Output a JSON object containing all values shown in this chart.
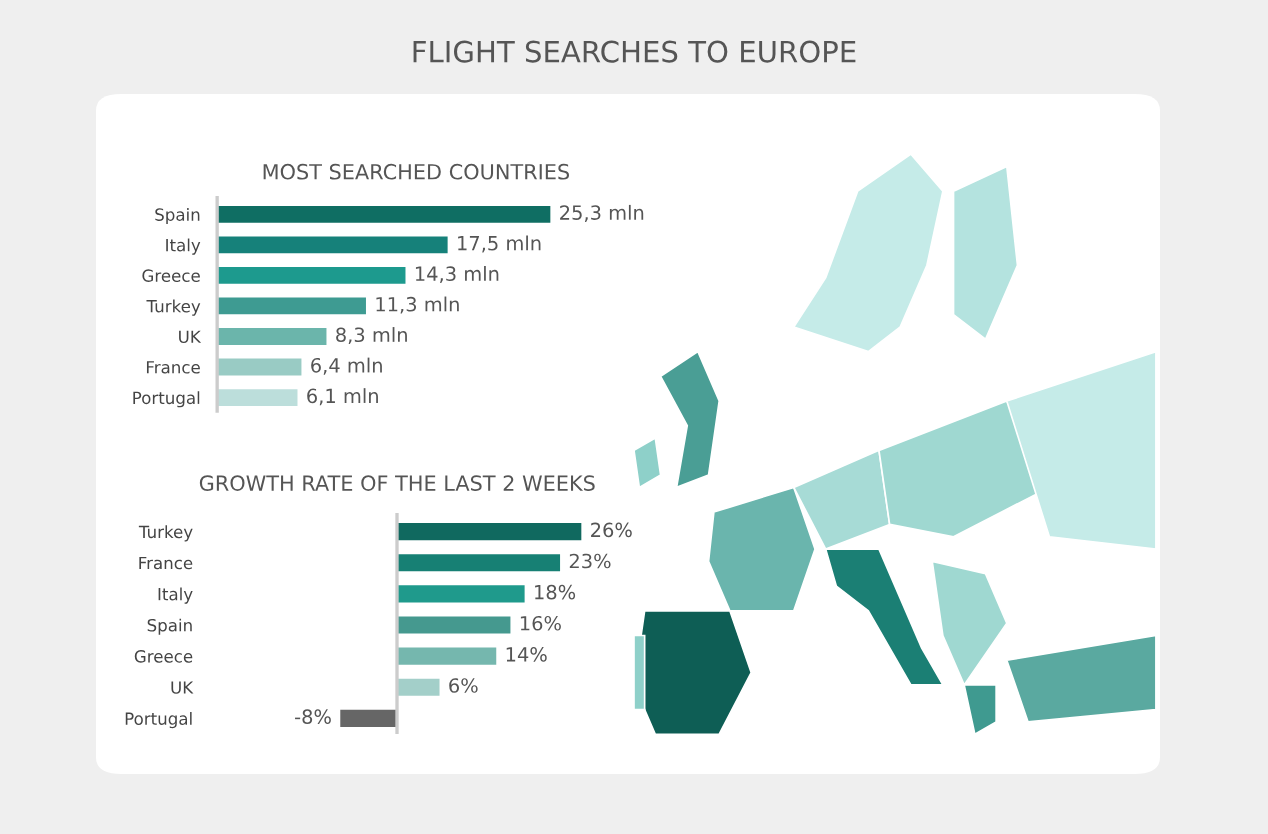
{
  "chart_data": [
    {
      "type": "bar",
      "orientation": "horizontal",
      "title": "FLIGHT SEARCHES TO EUROPE",
      "subtitle": "MOST SEARCHED COUNTRIES",
      "categories": [
        "Spain",
        "Italy",
        "Greece",
        "Turkey",
        "UK",
        "France",
        "Portugal"
      ],
      "values": [
        25.3,
        17.5,
        14.3,
        11.3,
        8.3,
        6.4,
        6.1
      ],
      "value_labels": [
        "25,3 mln",
        "17,5 mln",
        "14,3 mln",
        "11,3 mln",
        "8,3 mln",
        "6,4 mln",
        "6,1 mln"
      ],
      "colors": [
        "#0f6e63",
        "#16817a",
        "#1d9a8e",
        "#3e9b92",
        "#6bb5ab",
        "#99cbc4",
        "#bcdedb"
      ],
      "tick_labels": "y"
    },
    {
      "type": "bar",
      "orientation": "horizontal",
      "title": "GROWTH RATE OF THE LAST 2 WEEKS",
      "categories": [
        "Turkey",
        "France",
        "Italy",
        "Spain",
        "Greece",
        "UK",
        "Portugal"
      ],
      "values": [
        26,
        23,
        18,
        16,
        14,
        6,
        -8
      ],
      "value_labels": [
        "26%",
        "23%",
        "18%",
        "16%",
        "14%",
        "6%",
        "-8%"
      ],
      "colors": [
        "#10695f",
        "#178074",
        "#1f9a8c",
        "#45998f",
        "#75b7ae",
        "#a3cfc9",
        "#666666"
      ],
      "tick_labels": "y"
    }
  ]
}
